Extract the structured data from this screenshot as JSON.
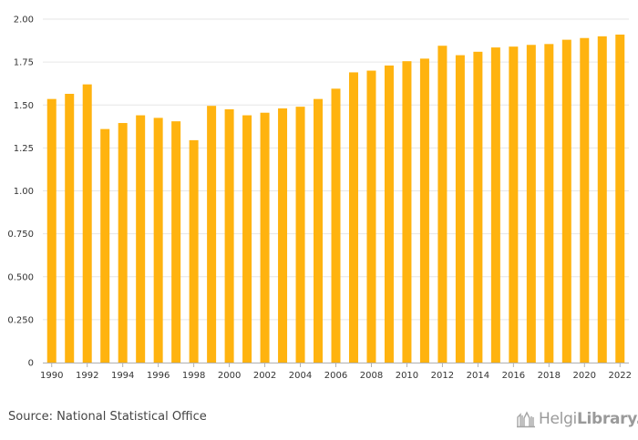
{
  "chart_data": {
    "type": "bar",
    "categories": [
      "1990",
      "1991",
      "1992",
      "1993",
      "1994",
      "1995",
      "1996",
      "1997",
      "1998",
      "1999",
      "2000",
      "2001",
      "2002",
      "2003",
      "2004",
      "2005",
      "2006",
      "2007",
      "2008",
      "2009",
      "2010",
      "2011",
      "2012",
      "2013",
      "2014",
      "2015",
      "2016",
      "2017",
      "2018",
      "2019",
      "2020",
      "2021",
      "2022"
    ],
    "values": [
      1.535,
      1.565,
      1.62,
      1.36,
      1.395,
      1.44,
      1.425,
      1.405,
      1.295,
      1.495,
      1.475,
      1.44,
      1.455,
      1.48,
      1.49,
      1.535,
      1.595,
      1.69,
      1.7,
      1.73,
      1.755,
      1.77,
      1.845,
      1.79,
      1.81,
      1.835,
      1.84,
      1.85,
      1.855,
      1.88,
      1.89,
      1.9,
      1.91
    ],
    "x_tick_labels": [
      "1990",
      "1992",
      "1994",
      "1996",
      "1998",
      "2000",
      "2002",
      "2004",
      "2006",
      "2008",
      "2010",
      "2012",
      "2014",
      "2016",
      "2018",
      "2020",
      "2022"
    ],
    "y_tick_labels": [
      "0",
      "0.250",
      "0.500",
      "0.750",
      "1.00",
      "1.25",
      "1.50",
      "1.75",
      "2.00"
    ],
    "ylim": [
      0,
      2.0
    ],
    "title": "",
    "xlabel": "",
    "ylabel": "",
    "grid": true,
    "colors": {
      "bar": "#FFB30F",
      "grid": "#e6e6e6",
      "axis": "#b0b0b0"
    }
  },
  "footer": {
    "source": "Source: National Statistical Office",
    "logo_word1": "Helgi",
    "logo_word2": "Library."
  }
}
